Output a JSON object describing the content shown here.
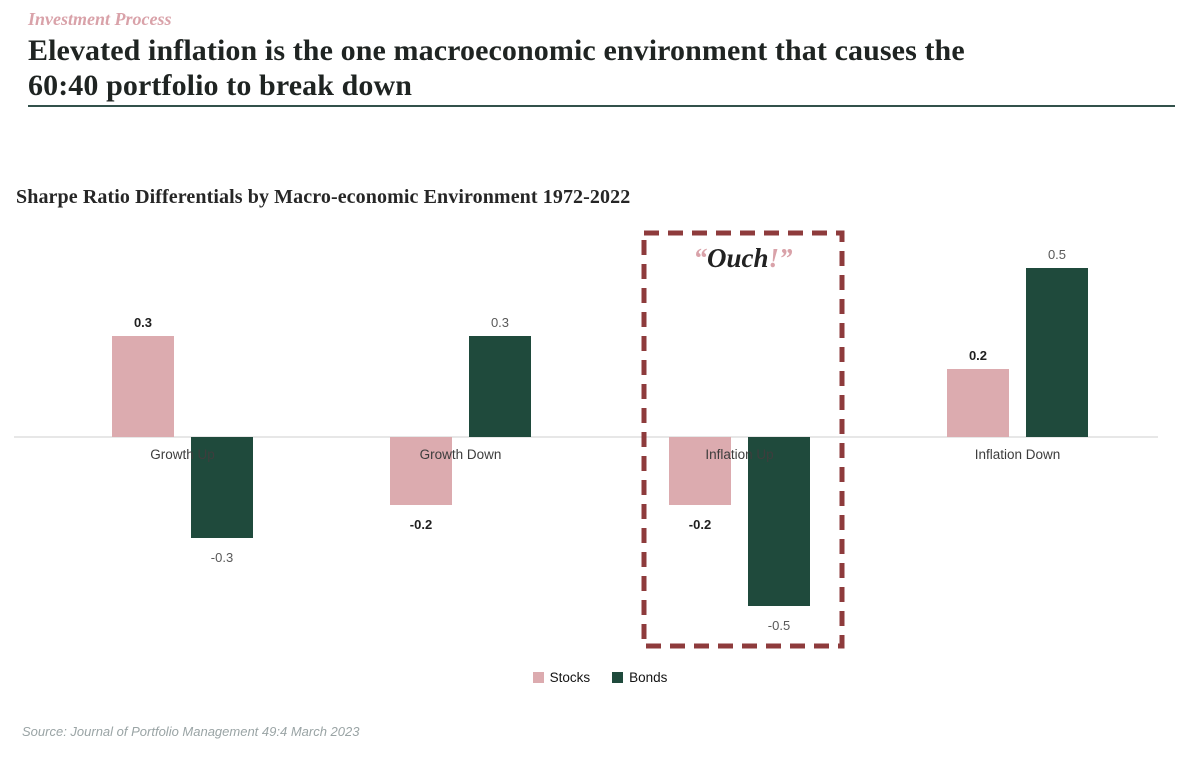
{
  "header": {
    "eyebrow": "Investment Process",
    "title_lines": [
      "Elevated inflation is the one macroeconomic environment that causes the",
      "60:40 portfolio to break down"
    ]
  },
  "chart_data": {
    "type": "bar",
    "title": "Sharpe Ratio Differentials by Macro-economic Environment 1972-2022",
    "categories": [
      "Growth Up",
      "Growth Down",
      "Inflation Up",
      "Inflation Down"
    ],
    "series": [
      {
        "name": "Stocks",
        "color": "#dcabaf",
        "label_color": "#1f1f1f",
        "values": [
          0.3,
          -0.2,
          -0.2,
          0.2
        ]
      },
      {
        "name": "Bonds",
        "color": "#1f4a3c",
        "label_color": "#595959",
        "values": [
          -0.3,
          0.3,
          -0.5,
          0.5
        ]
      }
    ],
    "ylim": [
      -0.55,
      0.55
    ],
    "grid": false,
    "legend_position": "bottom",
    "annotation": {
      "open_quote": "“",
      "word": "Ouch",
      "close": "!”",
      "target_category": "Inflation Up"
    }
  },
  "footer": {
    "source": "Source: Journal of Portfolio Management 49:4 March 2023"
  },
  "colors": {
    "accent_pink": "#d9a2a9",
    "stocks_bar": "#dcabaf",
    "bonds_bar": "#1f4a3c",
    "highlight_border": "#8e3b3c",
    "title_rule": "#33514b",
    "axis_line": "#e7e7e7"
  }
}
